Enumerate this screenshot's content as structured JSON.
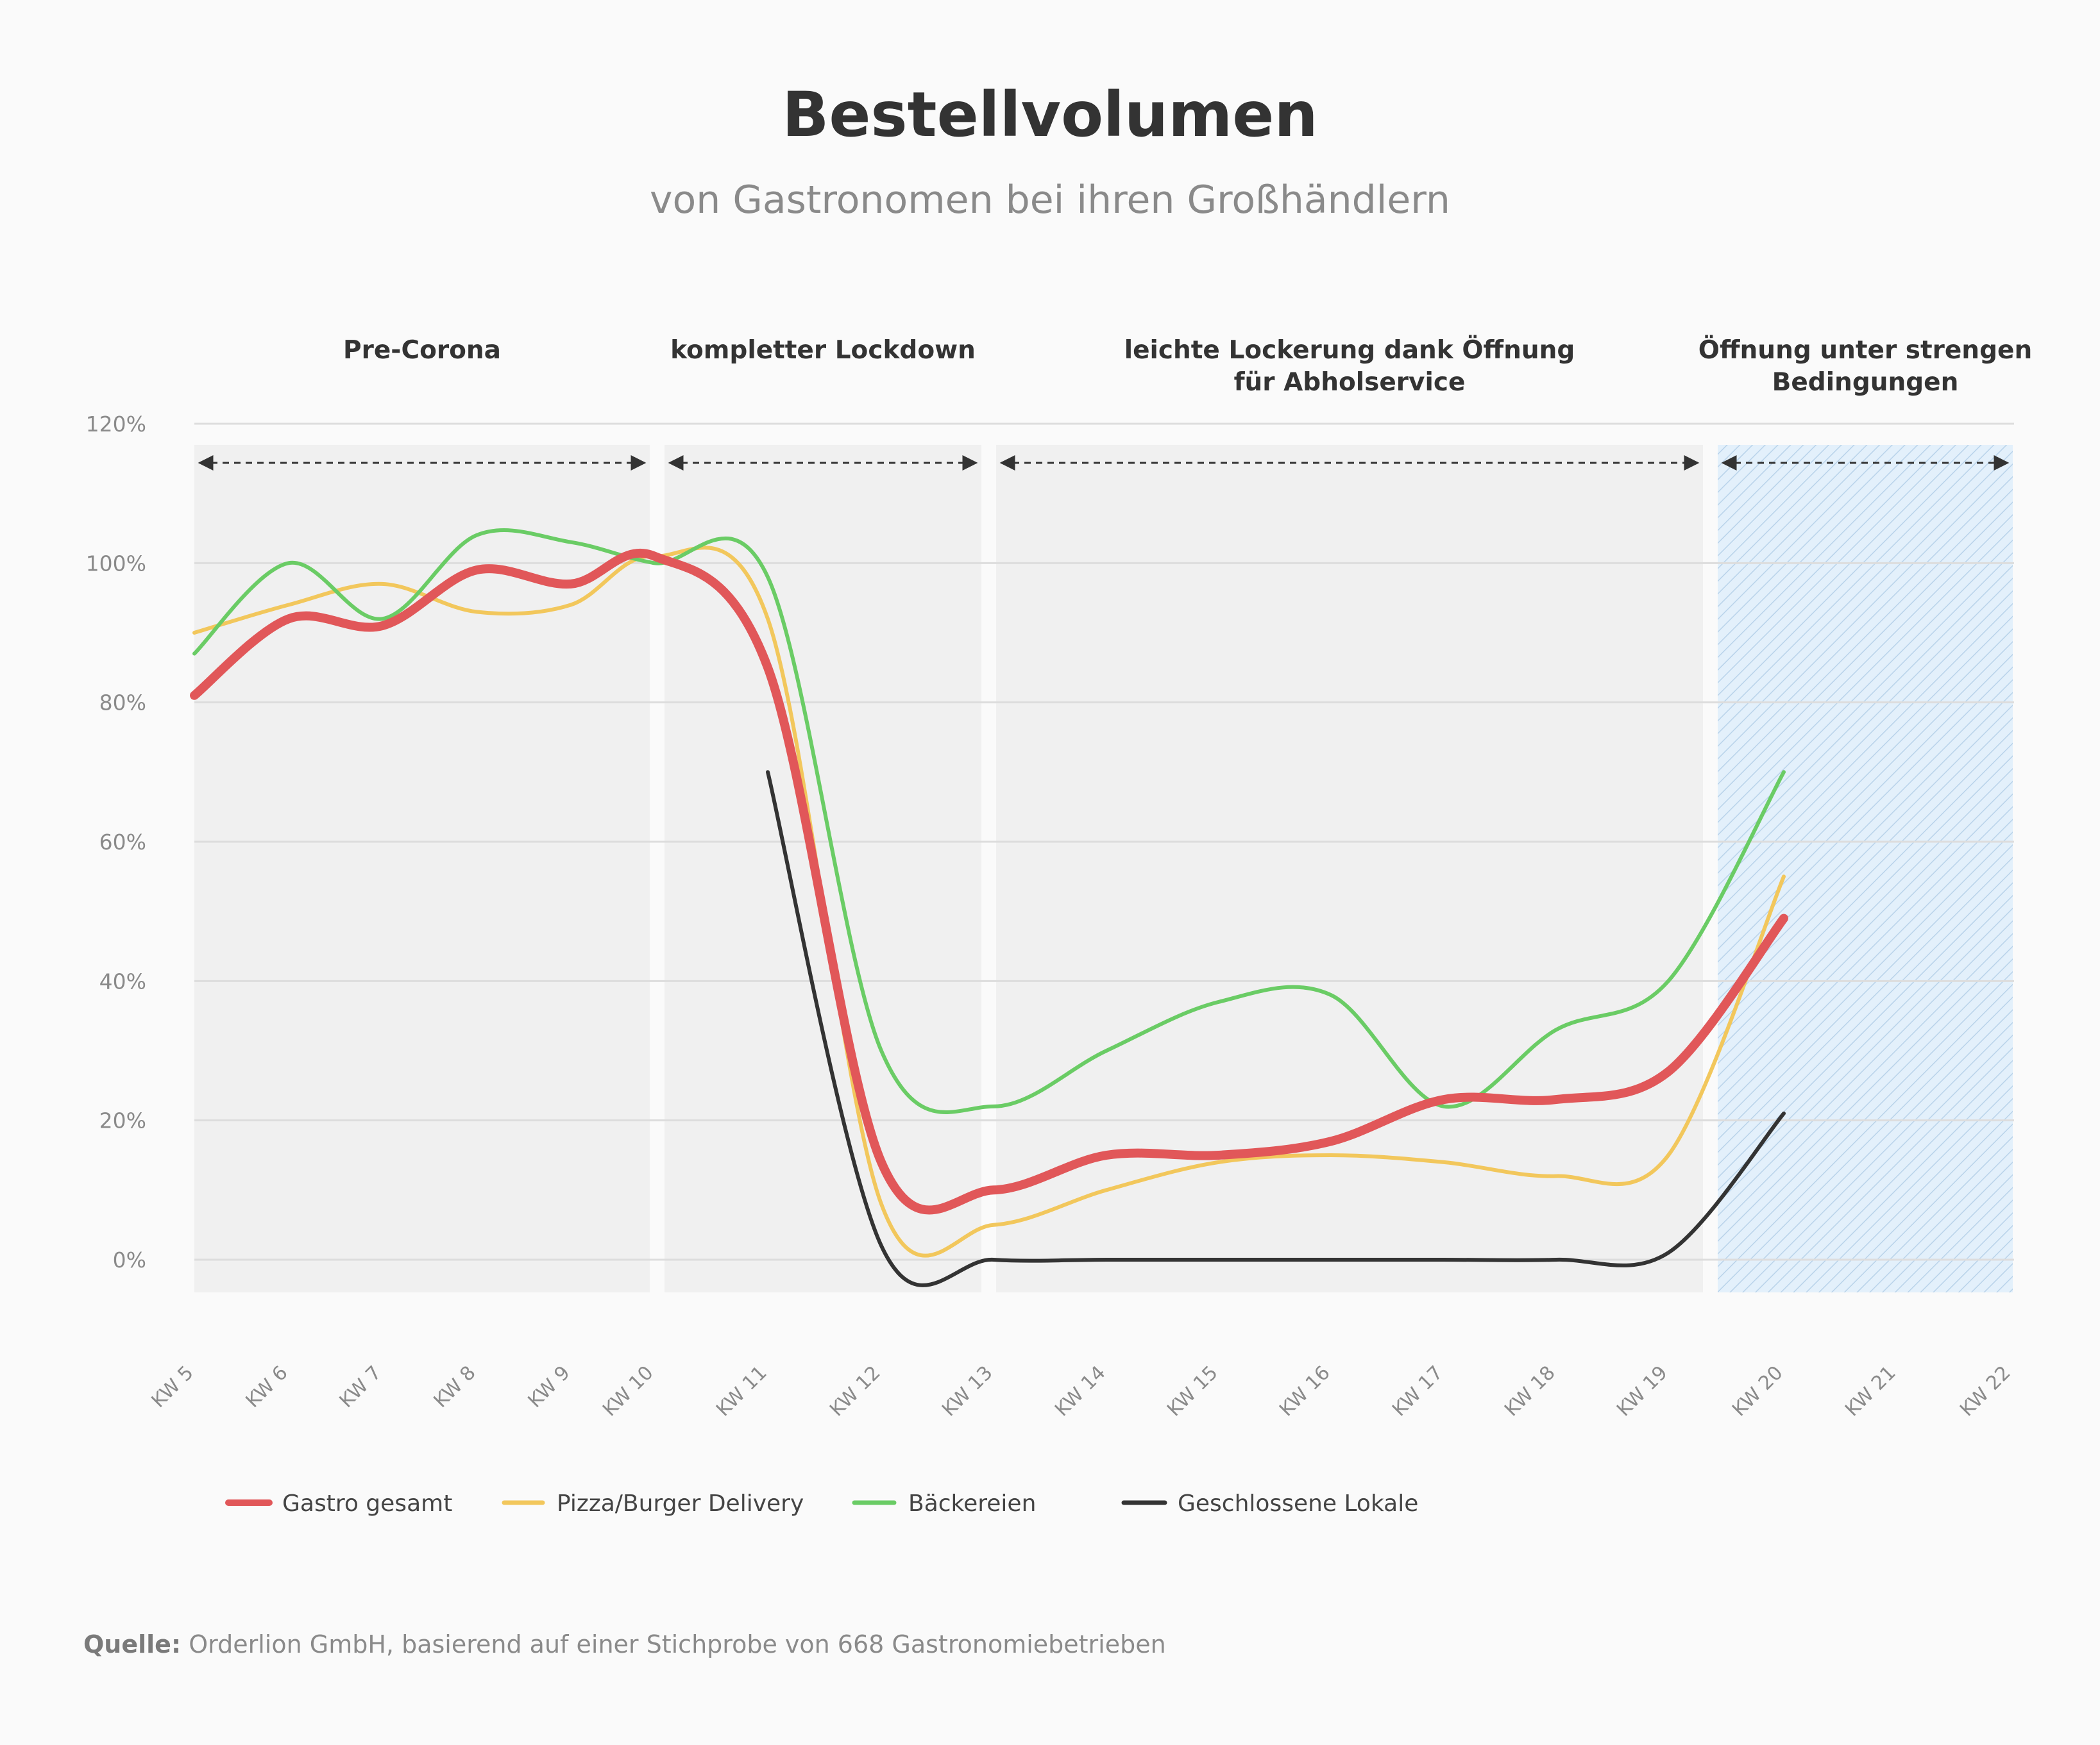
{
  "chart_data": {
    "type": "line",
    "title": "Bestellvolumen",
    "subtitle": "von Gastronomen bei ihren Großhändlern",
    "x": [
      "KW 5",
      "KW 6",
      "KW 7",
      "KW 8",
      "KW 9",
      "KW 10",
      "KW 11",
      "KW 12",
      "KW 13",
      "KW 14",
      "KW 15",
      "KW 16",
      "KW 17",
      "KW 18",
      "KW 19",
      "KW 20",
      "KW 21",
      "KW 22"
    ],
    "yticks": [
      "0%",
      "20%",
      "40%",
      "60%",
      "80%",
      "100%",
      "120%"
    ],
    "ylim": [
      0,
      120
    ],
    "grid": true,
    "legend_position": "bottom",
    "phases": [
      {
        "label": "Pre-Corona",
        "from": "KW 5",
        "to": "KW 10"
      },
      {
        "label": "kompletter Lockdown",
        "from": "KW 10",
        "to": "KW 13"
      },
      {
        "label": "leichte Lockerung dank Öffnung",
        "label2": "für Abholservice",
        "from": "KW 13",
        "to": "KW 19"
      },
      {
        "label": "Öffnung unter strengen",
        "label2": "Bedingungen",
        "from": "KW 19",
        "to": "KW 22",
        "hatched": true
      }
    ],
    "series": [
      {
        "name": "Gastro gesamt",
        "color": "#e15759",
        "values": [
          81,
          92,
          91,
          99,
          97,
          101,
          85,
          14,
          10,
          15,
          15,
          17,
          23,
          23,
          27,
          49,
          null,
          null
        ]
      },
      {
        "name": "Pizza/Burger Delivery",
        "color": "#f2c75c",
        "values": [
          90,
          94,
          97,
          93,
          94,
          101,
          92,
          8,
          5,
          10,
          14,
          15,
          14,
          12,
          15,
          55,
          null,
          null
        ]
      },
      {
        "name": "Bäckereien",
        "color": "#6acc65",
        "values": [
          87,
          100,
          92,
          104,
          103,
          100,
          98,
          30,
          22,
          30,
          37,
          38,
          22,
          33,
          40,
          70,
          null,
          null
        ]
      },
      {
        "name": "Geschlossene Lokale",
        "color": "#333333",
        "values": [
          null,
          null,
          null,
          null,
          null,
          null,
          70,
          2,
          0,
          0,
          0,
          0,
          0,
          0,
          1,
          21,
          null,
          null
        ]
      }
    ]
  },
  "source": {
    "label": "Quelle:",
    "text": "Orderlion GmbH, basierend auf einer Stichprobe von 668 Gastronomiebetrieben"
  }
}
